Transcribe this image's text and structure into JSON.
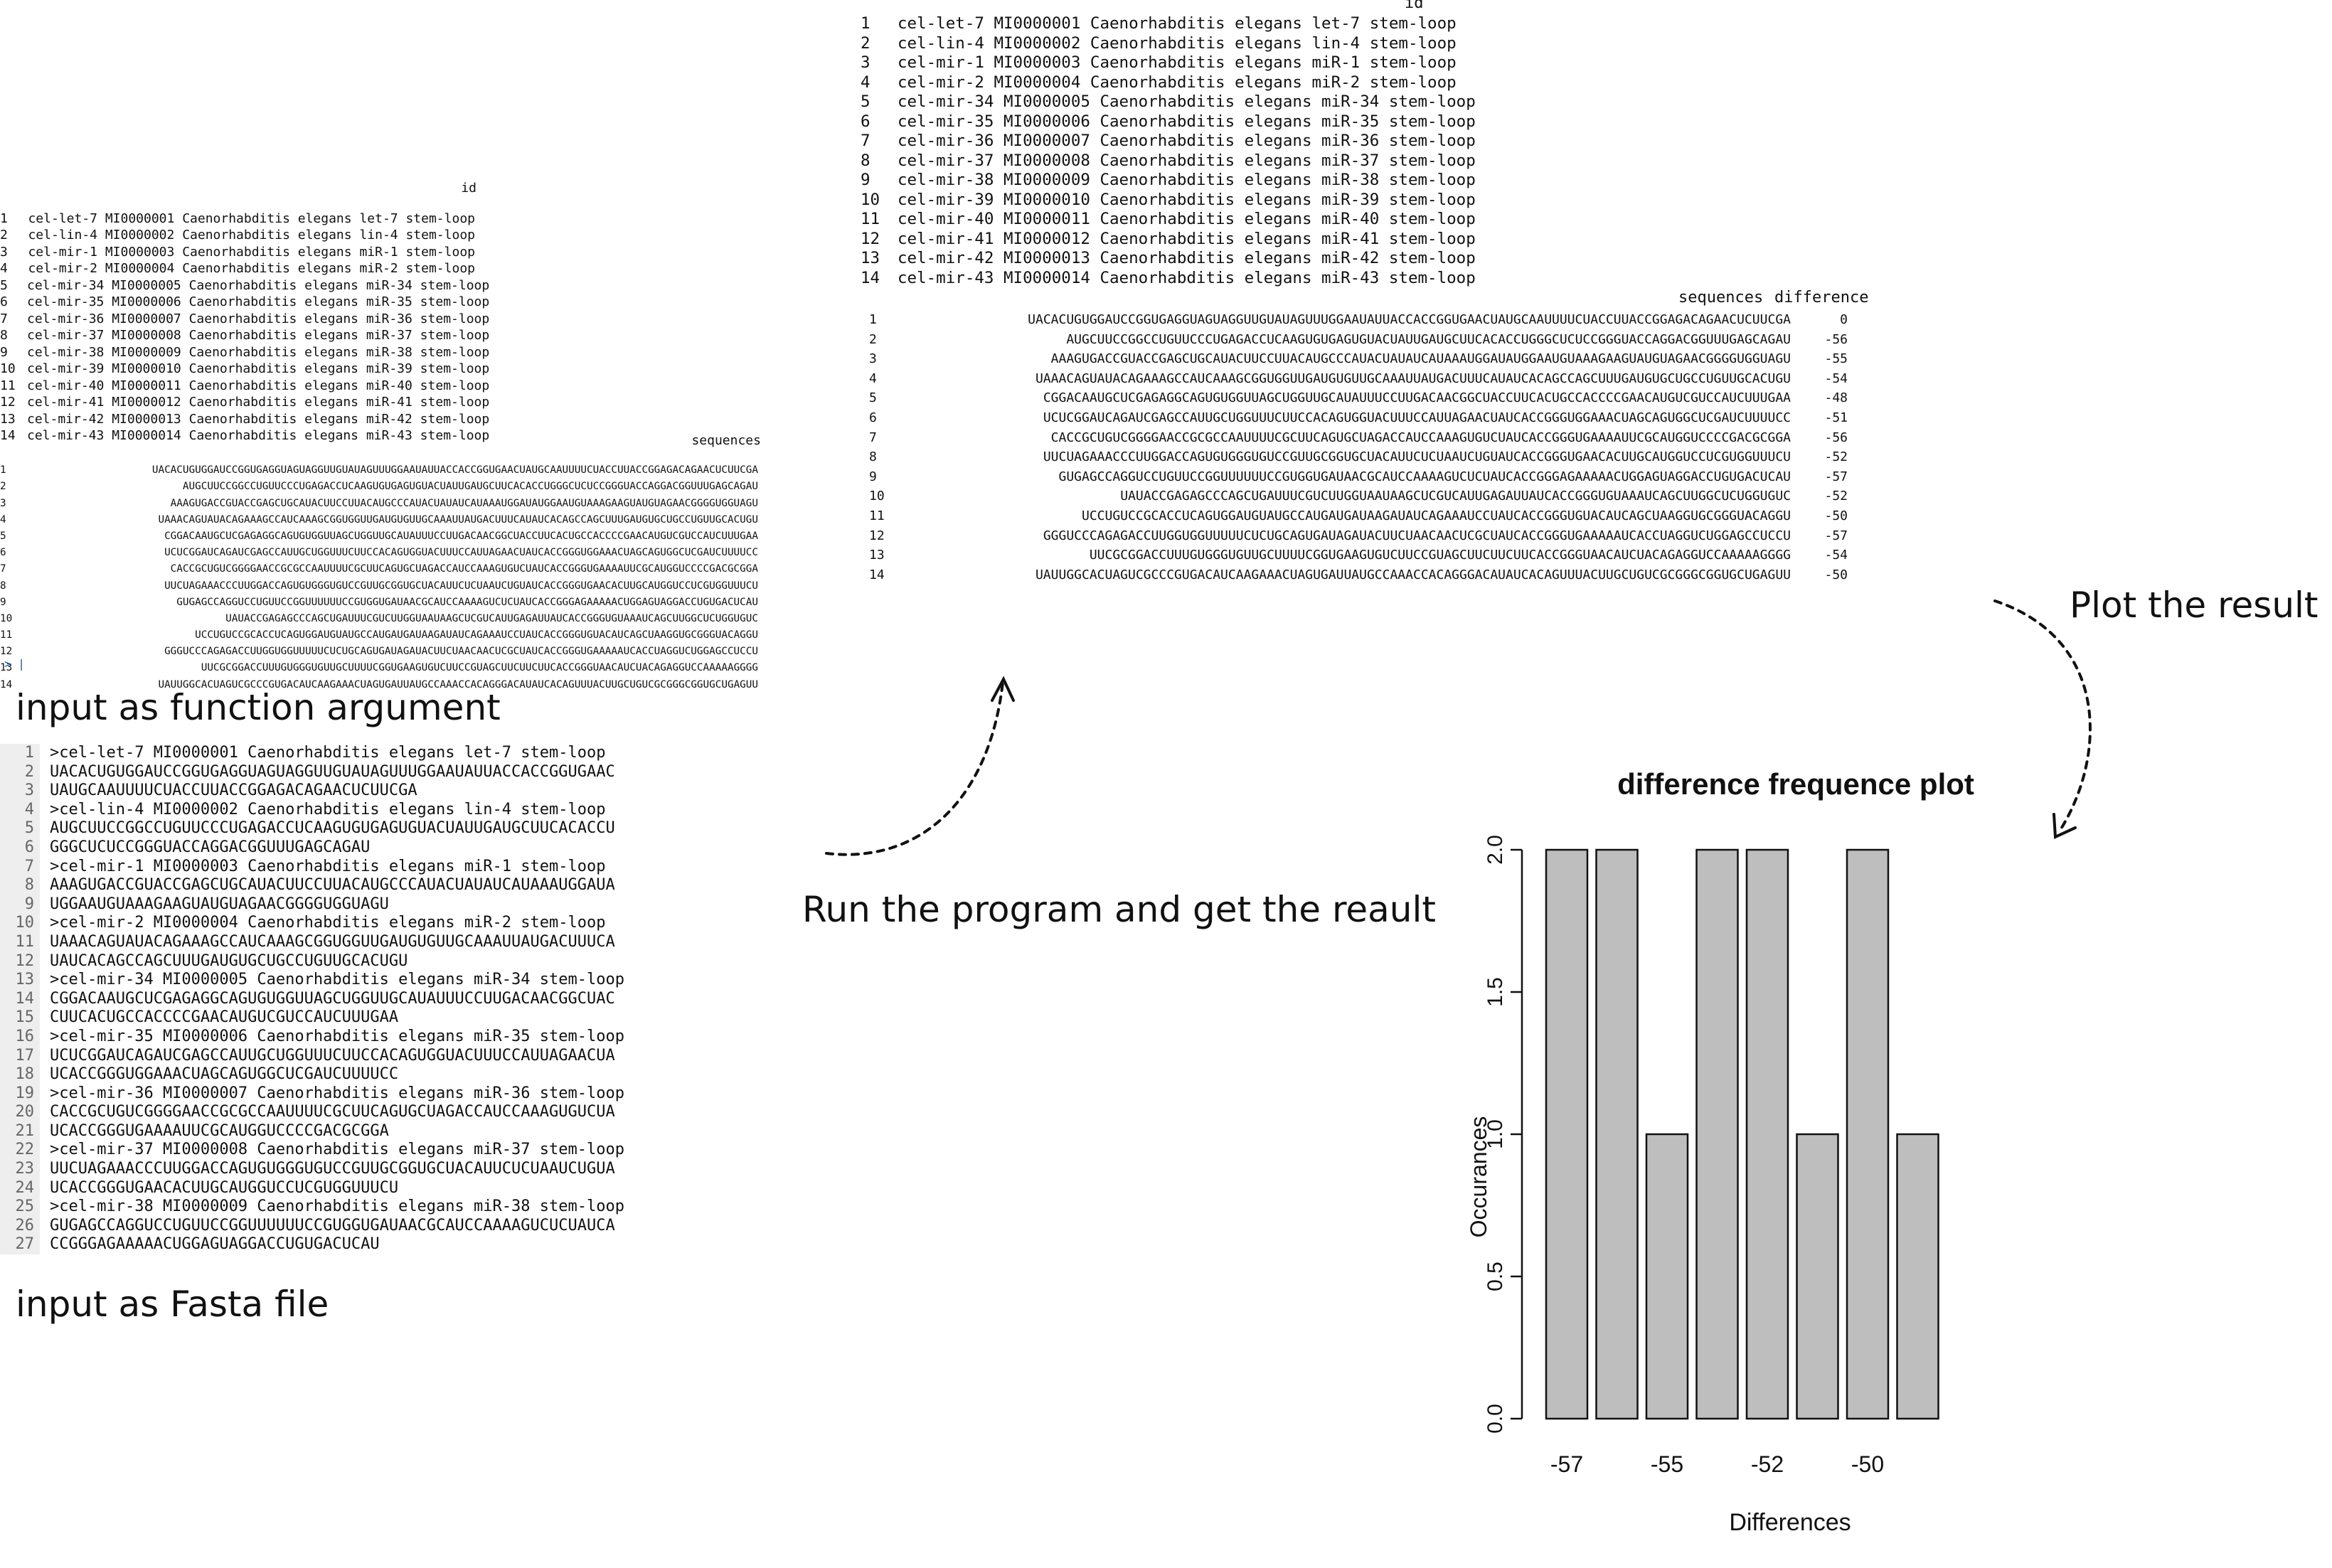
{
  "panel_left": {
    "id_header": "id",
    "id_rows": [
      {
        "n": "1",
        "v": "cel-let-7 MI0000001 Caenorhabditis elegans let-7 stem-loop"
      },
      {
        "n": "2",
        "v": "cel-lin-4 MI0000002 Caenorhabditis elegans lin-4 stem-loop"
      },
      {
        "n": "3",
        "v": "cel-mir-1 MI0000003 Caenorhabditis elegans miR-1 stem-loop"
      },
      {
        "n": "4",
        "v": "cel-mir-2 MI0000004 Caenorhabditis elegans miR-2 stem-loop"
      },
      {
        "n": "5",
        "v": "cel-mir-34 MI0000005 Caenorhabditis elegans miR-34 stem-loop"
      },
      {
        "n": "6",
        "v": "cel-mir-35 MI0000006 Caenorhabditis elegans miR-35 stem-loop"
      },
      {
        "n": "7",
        "v": "cel-mir-36 MI0000007 Caenorhabditis elegans miR-36 stem-loop"
      },
      {
        "n": "8",
        "v": "cel-mir-37 MI0000008 Caenorhabditis elegans miR-37 stem-loop"
      },
      {
        "n": "9",
        "v": "cel-mir-38 MI0000009 Caenorhabditis elegans miR-38 stem-loop"
      },
      {
        "n": "10",
        "v": "cel-mir-39 MI0000010 Caenorhabditis elegans miR-39 stem-loop"
      },
      {
        "n": "11",
        "v": "cel-mir-40 MI0000011 Caenorhabditis elegans miR-40 stem-loop"
      },
      {
        "n": "12",
        "v": "cel-mir-41 MI0000012 Caenorhabditis elegans miR-41 stem-loop"
      },
      {
        "n": "13",
        "v": "cel-mir-42 MI0000013 Caenorhabditis elegans miR-42 stem-loop"
      },
      {
        "n": "14",
        "v": "cel-mir-43 MI0000014 Caenorhabditis elegans miR-43 stem-loop"
      }
    ],
    "seq_header": "sequences",
    "seq_rows": [
      {
        "n": "1",
        "v": "UACACUGUGGAUCCGGUGAGGUAGUAGGUUGUAUAGUUUGGAAUAUUACCACCGGUGAACUAUGCAAUUUUCUACCUUACCGGAGACAGAACUCUUCGA"
      },
      {
        "n": "2",
        "v": "AUGCUUCCGGCCUGUUCCCUGAGACCUCAAGUGUGAGUGUACUAUUGAUGCUUCACACCUGGGCUCUCCGGGUACCAGGACGGUUUGAGCAGAU"
      },
      {
        "n": "3",
        "v": "AAAGUGACCGUACCGAGCUGCAUACUUCCUUACAUGCCCAUACUAUAUCAUAAAUGGAUAUGGAAUGUAAAGAAGUAUGUAGAACGGGGUGGUAGU"
      },
      {
        "n": "4",
        "v": "UAAACAGUAUACAGAAAGCCAUCAAAGCGGUGGUUGAUGUGUUGCAAAUUAUGACUUUCAUAUCACAGCCAGCUUUGAUGUGCUGCCUGUUGCACUGU"
      },
      {
        "n": "5",
        "v": "CGGACAAUGCUCGAGAGGCAGUGUGGUUAGCUGGUUGCAUAUUUCCUUGACAACGGCUACCUUCACUGCCACCCCGAACAUGUCGUCCAUCUUUGAA"
      },
      {
        "n": "6",
        "v": "UCUCGGAUCAGAUCGAGCCAUUGCUGGUUUCUUCCACAGUGGUACUUUCCAUUAGAACUAUCACCGGGUGGAAACUAGCAGUGGCUCGAUCUUUUCC"
      },
      {
        "n": "7",
        "v": "CACCGCUGUCGGGGAACCGCGCCAAUUUUCGCUUCAGUGCUAGACCAUCCAAAGUGUCUAUCACCGGGUGAAAAUUCGCAUGGUCCCCGACGCGGA"
      },
      {
        "n": "8",
        "v": "UUCUAGAAACCCUUGGACCAGUGUGGGUGUCCGUUGCGGUGCUACAUUCUCUAAUCUGUAUCACCGGGUGAACACUUGCAUGGUCCUCGUGGUUUCU"
      },
      {
        "n": "9",
        "v": "GUGAGCCAGGUCCUGUUCCGGUUUUUUCCGUGGUGAUAACGCAUCCAAAAGUCUCUAUCACCGGGAGAAAAACUGGAGUAGGACCUGUGACUCAU"
      },
      {
        "n": "10",
        "v": "UAUACCGAGAGCCCAGCUGAUUUCGUCUUGGUAAUAAGCUCGUCAUUGAGAUUAUCACCGGGUGUAAAUCAGCUUGGCUCUGGUGUC"
      },
      {
        "n": "11",
        "v": "UCCUGUCCGCACCUCAGUGGAUGUAUGCCAUGAUGAUAAGAUAUCAGAAAUCCUAUCACCGGGUGUACAUCAGCUAAGGUGCGGGUACAGGU"
      },
      {
        "n": "12",
        "v": "GGGUCCCAGAGACCUUGGUGGUUUUUCUCUGCAGUGAUAGAUACUUCUAACAACUCGCUAUCACCGGGUGAAAAAUCACCUAGGUCUGGAGCCUCCU"
      },
      {
        "n": "13",
        "v": "UUCGCGGACCUUUGUGGGUGUUGCUUUUCGGUGAAGUGUCUUCCGUAGCUUCUUCUUCACCGGGUAACAUCUACAGAGGUCCAAAAAGGGG"
      },
      {
        "n": "14",
        "v": "UAUUGGCACUAGUCGCCCGUGACAUCAAGAAACUAGUGAUUAUGCCAAACCACAGGGACAUAUCACAGUUUACUUGCUGUCGCGGGCGGUGCUGAGUU"
      }
    ],
    "prompt": "> |",
    "caption": "input as function argument"
  },
  "panel_fasta": {
    "rows": [
      {
        "n": "1",
        "v": ">cel-let-7 MI0000001 Caenorhabditis elegans let-7 stem-loop"
      },
      {
        "n": "2",
        "v": "UACACUGUGGAUCCGGUGAGGUAGUAGGUUGUAUAGUUUGGAAUAUUACCACCGGUGAAC"
      },
      {
        "n": "3",
        "v": "UAUGCAAUUUUCUACCUUACCGGAGACAGAACUCUUCGA"
      },
      {
        "n": "4",
        "v": ">cel-lin-4 MI0000002 Caenorhabditis elegans lin-4 stem-loop"
      },
      {
        "n": "5",
        "v": "AUGCUUCCGGCCUGUUCCCUGAGACCUCAAGUGUGAGUGUACUAUUGAUGCUUCACACCU"
      },
      {
        "n": "6",
        "v": "GGGCUCUCCGGGUACCAGGACGGUUUGAGCAGAU"
      },
      {
        "n": "7",
        "v": ">cel-mir-1 MI0000003 Caenorhabditis elegans miR-1 stem-loop"
      },
      {
        "n": "8",
        "v": "AAAGUGACCGUACCGAGCUGCAUACUUCCUUACAUGCCCAUACUAUAUCAUAAAUGGAUA"
      },
      {
        "n": "9",
        "v": "UGGAAUGUAAAGAAGUAUGUAGAACGGGGUGGUAGU"
      },
      {
        "n": "10",
        "v": ">cel-mir-2 MI0000004 Caenorhabditis elegans miR-2 stem-loop"
      },
      {
        "n": "11",
        "v": "UAAACAGUAUACAGAAAGCCAUCAAAGCGGUGGUUGAUGUGUUGCAAAUUAUGACUUUCA"
      },
      {
        "n": "12",
        "v": "UAUCACAGCCAGCUUUGAUGUGCUGCCUGUUGCACUGU"
      },
      {
        "n": "13",
        "v": ">cel-mir-34 MI0000005 Caenorhabditis elegans miR-34 stem-loop"
      },
      {
        "n": "14",
        "v": "CGGACAAUGCUCGAGAGGCAGUGUGGUUAGCUGGUUGCAUAUUUCCUUGACAACGGCUAC"
      },
      {
        "n": "15",
        "v": "CUUCACUGCCACCCCGAACAUGUCGUCCAUCUUUGAA"
      },
      {
        "n": "16",
        "v": ">cel-mir-35 MI0000006 Caenorhabditis elegans miR-35 stem-loop"
      },
      {
        "n": "17",
        "v": "UCUCGGAUCAGAUCGAGCCAUUGCUGGUUUCUUCCACAGUGGUACUUUCCAUUAGAACUA"
      },
      {
        "n": "18",
        "v": "UCACCGGGUGGAAACUAGCAGUGGCUCGAUCUUUUCC"
      },
      {
        "n": "19",
        "v": ">cel-mir-36 MI0000007 Caenorhabditis elegans miR-36 stem-loop"
      },
      {
        "n": "20",
        "v": "CACCGCUGUCGGGGAACCGCGCCAAUUUUCGCUUCAGUGCUAGACCAUCCAAAGUGUCUA"
      },
      {
        "n": "21",
        "v": "UCACCGGGUGAAAAUUCGCAUGGUCCCCGACGCGGA"
      },
      {
        "n": "22",
        "v": ">cel-mir-37 MI0000008 Caenorhabditis elegans miR-37 stem-loop"
      },
      {
        "n": "23",
        "v": "UUCUAGAAACCCUUGGACCAGUGUGGGUGUCCGUUGCGGUGCUACAUUCUCUAAUCUGUA"
      },
      {
        "n": "24",
        "v": "UCACCGGGUGAACACUUGCAUGGUCCUCGUGGUUUCU"
      },
      {
        "n": "25",
        "v": ">cel-mir-38 MI0000009 Caenorhabditis elegans miR-38 stem-loop"
      },
      {
        "n": "26",
        "v": "GUGAGCCAGGUCCUGUUCCGGUUUUUUCCGUGGUGAUAACGCAUCCAAAAGUCUCUAUCA"
      },
      {
        "n": "27",
        "v": "CCGGGAGAAAAACUGGAGUAGGACCUGUGACUCAU"
      }
    ],
    "caption": "input as Fasta file"
  },
  "panel_result": {
    "id_header": "id",
    "id_rows": [
      {
        "n": "1",
        "v": "cel-let-7 MI0000001 Caenorhabditis elegans let-7 stem-loop"
      },
      {
        "n": "2",
        "v": "cel-lin-4 MI0000002 Caenorhabditis elegans lin-4 stem-loop"
      },
      {
        "n": "3",
        "v": "cel-mir-1 MI0000003 Caenorhabditis elegans miR-1 stem-loop"
      },
      {
        "n": "4",
        "v": "cel-mir-2 MI0000004 Caenorhabditis elegans miR-2 stem-loop"
      },
      {
        "n": "5",
        "v": "cel-mir-34 MI0000005 Caenorhabditis elegans miR-34 stem-loop"
      },
      {
        "n": "6",
        "v": "cel-mir-35 MI0000006 Caenorhabditis elegans miR-35 stem-loop"
      },
      {
        "n": "7",
        "v": "cel-mir-36 MI0000007 Caenorhabditis elegans miR-36 stem-loop"
      },
      {
        "n": "8",
        "v": "cel-mir-37 MI0000008 Caenorhabditis elegans miR-37 stem-loop"
      },
      {
        "n": "9",
        "v": "cel-mir-38 MI0000009 Caenorhabditis elegans miR-38 stem-loop"
      },
      {
        "n": "10",
        "v": "cel-mir-39 MI0000010 Caenorhabditis elegans miR-39 stem-loop"
      },
      {
        "n": "11",
        "v": "cel-mir-40 MI0000011 Caenorhabditis elegans miR-40 stem-loop"
      },
      {
        "n": "12",
        "v": "cel-mir-41 MI0000012 Caenorhabditis elegans miR-41 stem-loop"
      },
      {
        "n": "13",
        "v": "cel-mir-42 MI0000013 Caenorhabditis elegans miR-42 stem-loop"
      },
      {
        "n": "14",
        "v": "cel-mir-43 MI0000014 Caenorhabditis elegans miR-43 stem-loop"
      }
    ],
    "seq_header": "sequences",
    "diff_header": "difference",
    "seq_rows": [
      {
        "n": "1",
        "v": "UACACUGUGGAUCCGGUGAGGUAGUAGGUUGUAUAGUUUGGAAUAUUACCACCGGUGAACUAUGCAAUUUUCUACCUUACCGGAGACAGAACUCUUCGA",
        "d": "0"
      },
      {
        "n": "2",
        "v": "AUGCUUCCGGCCUGUUCCCUGAGACCUCAAGUGUGAGUGUACUAUUGAUGCUUCACACCUGGGCUCUCCGGGUACCAGGACGGUUUGAGCAGAU",
        "d": "-56"
      },
      {
        "n": "3",
        "v": "AAAGUGACCGUACCGAGCUGCAUACUUCCUUACAUGCCCAUACUAUAUCAUAAAUGGAUAUGGAAUGUAAAGAAGUAUGUAGAACGGGGUGGUAGU",
        "d": "-55"
      },
      {
        "n": "4",
        "v": "UAAACAGUAUACAGAAAGCCAUCAAAGCGGUGGUUGAUGUGUUGCAAAUUAUGACUUUCAUAUCACAGCCAGCUUUGAUGUGCUGCCUGUUGCACUGU",
        "d": "-54"
      },
      {
        "n": "5",
        "v": "CGGACAAUGCUCGAGAGGCAGUGUGGUUAGCUGGUUGCAUAUUUCCUUGACAACGGCUACCUUCACUGCCACCCCGAACAUGUCGUCCAUCUUUGAA",
        "d": "-48"
      },
      {
        "n": "6",
        "v": "UCUCGGAUCAGAUCGAGCCAUUGCUGGUUUCUUCCACAGUGGUACUUUCCAUUAGAACUAUCACCGGGUGGAAACUAGCAGUGGCUCGAUCUUUUCC",
        "d": "-51"
      },
      {
        "n": "7",
        "v": "CACCGCUGUCGGGGAACCGCGCCAAUUUUCGCUUCAGUGCUAGACCAUCCAAAGUGUCUAUCACCGGGUGAAAAUUCGCAUGGUCCCCGACGCGGA",
        "d": "-56"
      },
      {
        "n": "8",
        "v": "UUCUAGAAACCCUUGGACCAGUGUGGGUGUCCGUUGCGGUGCUACAUUCUCUAAUCUGUAUCACCGGGUGAACACUUGCAUGGUCCUCGUGGUUUCU",
        "d": "-52"
      },
      {
        "n": "9",
        "v": "GUGAGCCAGGUCCUGUUCCGGUUUUUUCCGUGGUGAUAACGCAUCCAAAAGUCUCUAUCACCGGGAGAAAAACUGGAGUAGGACCUGUGACUCAU",
        "d": "-57"
      },
      {
        "n": "10",
        "v": "UAUACCGAGAGCCCAGCUGAUUUCGUCUUGGUAAUAAGCUCGUCAUUGAGAUUAUCACCGGGUGUAAAUCAGCUUGGCUCUGGUGUC",
        "d": "-52"
      },
      {
        "n": "11",
        "v": "UCCUGUCCGCACCUCAGUGGAUGUAUGCCAUGAUGAUAAGAUAUCAGAAAUCCUAUCACCGGGUGUACAUCAGCUAAGGUGCGGGUACAGGU",
        "d": "-50"
      },
      {
        "n": "12",
        "v": "GGGUCCCAGAGACCUUGGUGGUUUUUCUCUGCAGUGAUAGAUACUUCUAACAACUCGCUAUCACCGGGUGAAAAAUCACCUAGGUCUGGAGCCUCCU",
        "d": "-57"
      },
      {
        "n": "13",
        "v": "UUCGCGGACCUUUGUGGGUGUUGCUUUUCGGUGAAGUGUCUUCCGUAGCUUCUUCUUCACCGGGUAACAUCUACAGAGGUCCAAAAAGGGG",
        "d": "-54"
      },
      {
        "n": "14",
        "v": "UAUUGGCACUAGUCGCCCGUGACAUCAAGAAACUAGUGAUUAUGCCAAACCACAGGGACAUAUCACAGUUUACUUGCUGUCGCGGGCGGUGCUGAGUU",
        "d": "-50"
      }
    ]
  },
  "labels": {
    "run": "Run the program and get the reault",
    "plot": "Plot the result"
  },
  "chart_data": {
    "type": "bar",
    "title": "difference frequence plot",
    "xlabel": "Differences",
    "ylabel": "Occurances",
    "categories": [
      "-57",
      "-56",
      "-55",
      "-54",
      "-52",
      "-51",
      "-50",
      "-48"
    ],
    "tick_labels": [
      "-57",
      "-55",
      "-52",
      "-50"
    ],
    "values": [
      2,
      2,
      1,
      2,
      2,
      1,
      2,
      1
    ],
    "yticks": [
      "0.0",
      "0.5",
      "1.0",
      "1.5",
      "2.0"
    ],
    "ylim": [
      0,
      2
    ],
    "bar_color": "#bebebe"
  }
}
